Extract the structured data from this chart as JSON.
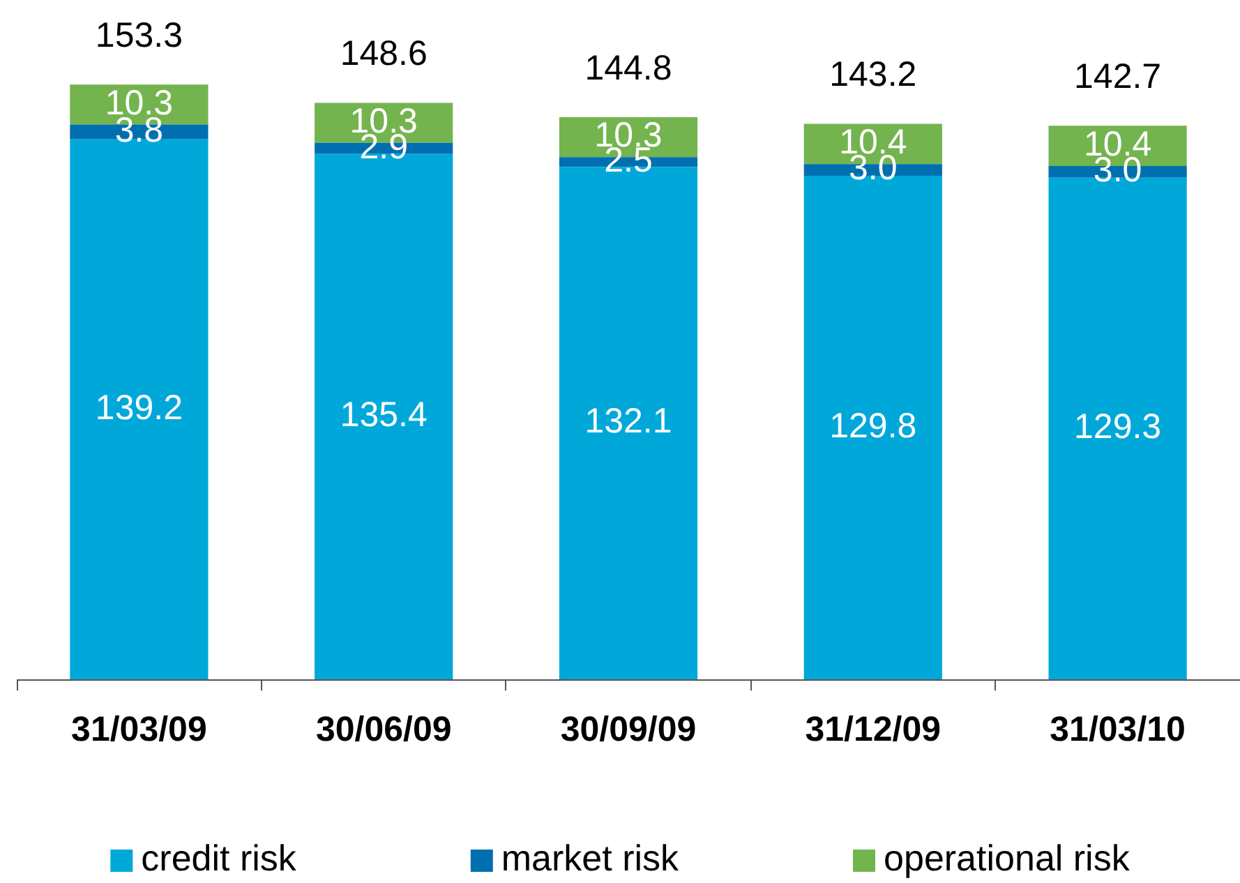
{
  "chart_data": {
    "type": "bar",
    "categories": [
      "31/03/09",
      "30/06/09",
      "30/09/09",
      "31/12/09",
      "31/03/10"
    ],
    "series": [
      {
        "name": "credit risk",
        "color": "#00a8da",
        "values": [
          139.2,
          135.4,
          132.1,
          129.8,
          129.3
        ],
        "value_labels": [
          "139.2",
          "135.4",
          "132.1",
          "129.8",
          "129.3"
        ]
      },
      {
        "name": "market risk",
        "color": "#006fb0",
        "values": [
          3.8,
          2.9,
          2.5,
          3.0,
          3.0
        ],
        "value_labels": [
          "3.8",
          "2.9",
          "2.5",
          "3.0",
          "3.0"
        ]
      },
      {
        "name": "operational risk",
        "color": "#73b44f",
        "values": [
          10.3,
          10.3,
          10.3,
          10.4,
          10.4
        ],
        "value_labels": [
          "10.3",
          "10.3",
          "10.3",
          "10.4",
          "10.4"
        ]
      }
    ],
    "stacked": true,
    "totals": [
      "153.3",
      "148.6",
      "144.8",
      "143.2",
      "142.7"
    ],
    "tick_labels": "x",
    "legend": "bottom"
  }
}
